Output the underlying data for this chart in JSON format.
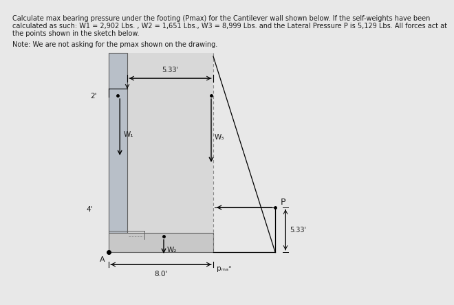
{
  "title_line1": "Calculate max bearing pressure under the footing (Pmax) for the Cantilever wall shown below. If the self-weights have been",
  "title_line2": "calculated as such: W1 = 2,902 Lbs. , W2 = 1,651 Lbs., W3 = 8,999 Lbs. and the Lateral Pressure P is 5,129 Lbs. All forces act at",
  "title_line3": "the points shown in the sketch below.",
  "note_text": "Note: We are not asking for the pmax shown on the drawing.",
  "bg_color": "#e8e8e8",
  "wall_color": "#b8bfc8",
  "footing_color": "#c8c8c8",
  "label_2ft": "2'",
  "label_4ft": "4'",
  "label_533a": "5.33'",
  "label_533b": "5.33'",
  "label_80": "8.0'",
  "label_W1": "W₁",
  "label_W2": "W₂",
  "label_W3": "W₃",
  "label_P": "P",
  "label_A": "A",
  "label_pmax": "pₘₐˣ",
  "text_color": "#1a1a1a"
}
